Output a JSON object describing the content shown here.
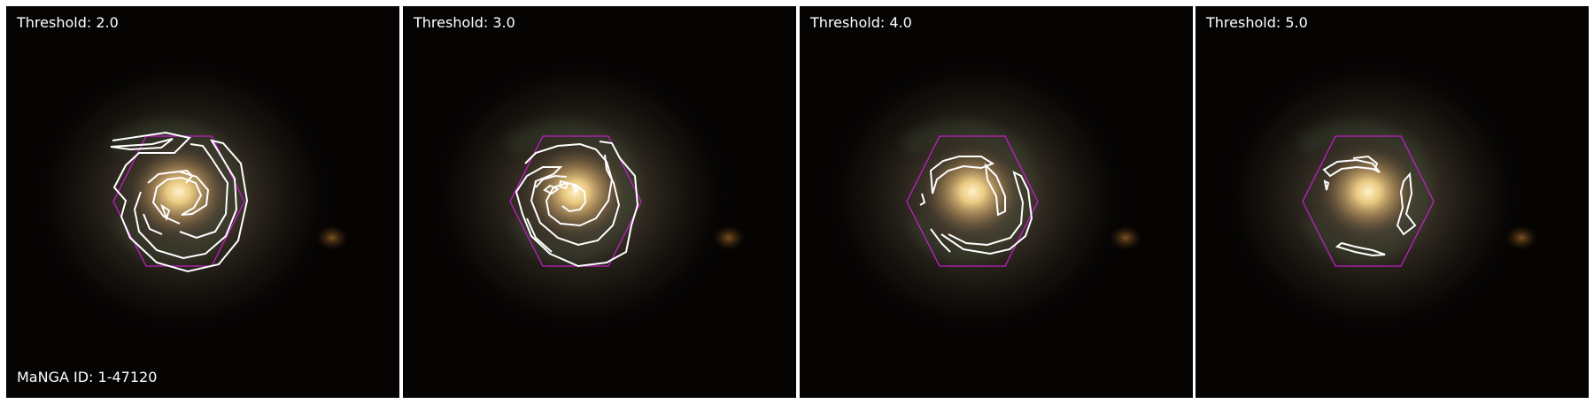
{
  "panels": [
    {
      "label": "Threshold: 2.0"
    },
    {
      "label": "Threshold: 3.0"
    },
    {
      "label": "Threshold: 4.0"
    },
    {
      "label": "Threshold: 5.0"
    }
  ],
  "footer": {
    "id_label": "MaNGA ID: 1-47120"
  },
  "colors": {
    "contour": "#ffffff",
    "hexagon": "#c21ec8",
    "background": "#050403",
    "galaxy_core": "#f4d89a"
  }
}
